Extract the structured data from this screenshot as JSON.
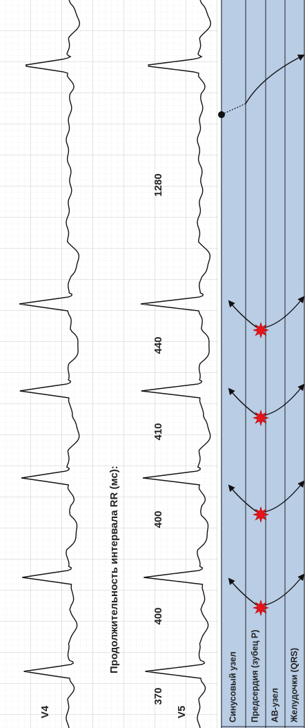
{
  "leads": [
    "V4",
    "V5"
  ],
  "rr_title": "Продолжительность интервала RR (мс):",
  "rr_values": [
    370,
    400,
    400,
    410,
    440,
    1280
  ],
  "ladder_labels": [
    "Синусовый узел",
    "Предсердия (зубец P)",
    "АВ-узел",
    "Желудочки (QRS)"
  ]
}
